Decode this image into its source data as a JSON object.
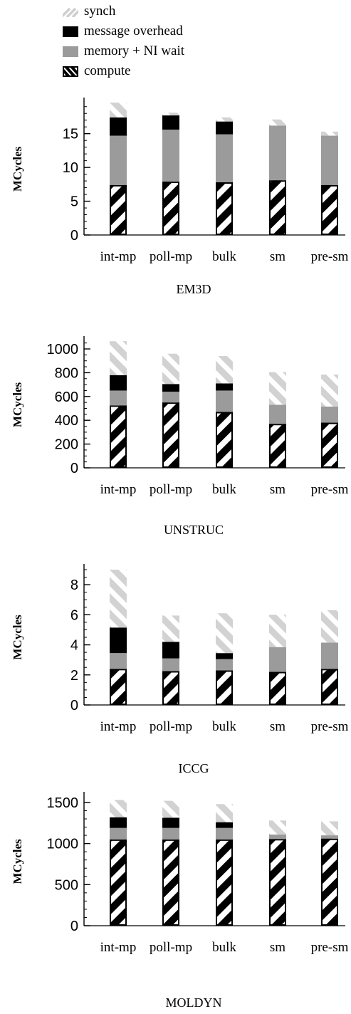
{
  "legend": {
    "items": [
      {
        "key": "synch",
        "label": "synch",
        "pattern": "light-hatch"
      },
      {
        "key": "message",
        "label": "message overhead",
        "pattern": "solid-black"
      },
      {
        "key": "memory",
        "label": "memory + NI wait",
        "pattern": "solid-gray"
      },
      {
        "key": "compute",
        "label": "compute",
        "pattern": "black-white-hatch"
      }
    ]
  },
  "colors": {
    "gray": "#9b9b9b",
    "black": "#000000",
    "light_hatch": "#d2d2d2"
  },
  "chart_data": [
    {
      "type": "bar",
      "stacked": true,
      "xlabel": "EM3D",
      "ylabel": "MCycles",
      "categories": [
        "int-mp",
        "poll-mp",
        "bulk",
        "sm",
        "pre-sm"
      ],
      "ylim": [
        0,
        19.5
      ],
      "yticks": [
        0,
        5,
        10,
        15
      ],
      "minor_step": 1,
      "series": [
        {
          "name": "compute",
          "values": [
            7.4,
            7.9,
            7.8,
            8.1,
            7.4
          ]
        },
        {
          "name": "memory + NI wait",
          "values": [
            7.3,
            7.7,
            7.1,
            8.1,
            7.3
          ]
        },
        {
          "name": "message overhead",
          "values": [
            2.7,
            2.1,
            1.9,
            0,
            0
          ]
        },
        {
          "name": "synch",
          "values": [
            2.2,
            0.4,
            0.6,
            0.9,
            0.6
          ]
        }
      ]
    },
    {
      "type": "bar",
      "stacked": true,
      "xlabel": "UNSTRUC",
      "ylabel": "MCycles",
      "categories": [
        "int-mp",
        "poll-mp",
        "bulk",
        "sm",
        "pre-sm"
      ],
      "ylim": [
        0,
        1060
      ],
      "yticks": [
        0,
        200,
        400,
        600,
        800,
        1000
      ],
      "minor_step": 50,
      "series": [
        {
          "name": "compute",
          "values": [
            525,
            550,
            470,
            370,
            380
          ]
        },
        {
          "name": "memory + NI wait",
          "values": [
            125,
            90,
            180,
            160,
            135
          ]
        },
        {
          "name": "message overhead",
          "values": [
            130,
            65,
            60,
            0,
            0
          ]
        },
        {
          "name": "synch",
          "values": [
            285,
            255,
            230,
            275,
            270
          ]
        }
      ]
    },
    {
      "type": "bar",
      "stacked": true,
      "xlabel": "ICCG",
      "ylabel": "MCycles",
      "categories": [
        "int-mp",
        "poll-mp",
        "bulk",
        "sm",
        "pre-sm"
      ],
      "ylim": [
        0,
        9
      ],
      "yticks": [
        0,
        2,
        4,
        6,
        8
      ],
      "minor_step": 0.5,
      "series": [
        {
          "name": "compute",
          "values": [
            2.4,
            2.25,
            2.3,
            2.2,
            2.4
          ]
        },
        {
          "name": "memory + NI wait",
          "values": [
            1.05,
            0.85,
            0.75,
            1.65,
            1.75
          ]
        },
        {
          "name": "message overhead",
          "values": [
            1.7,
            1.1,
            0.4,
            0,
            0
          ]
        },
        {
          "name": "synch",
          "values": [
            3.85,
            1.75,
            2.65,
            2.15,
            2.15
          ]
        }
      ]
    },
    {
      "type": "bar",
      "stacked": true,
      "xlabel": "MOLDYN",
      "ylabel": "MCycles",
      "categories": [
        "int-mp",
        "poll-mp",
        "bulk",
        "sm",
        "pre-sm"
      ],
      "ylim": [
        0,
        1560
      ],
      "yticks": [
        0,
        500,
        1000,
        1500
      ],
      "minor_step": 100,
      "series": [
        {
          "name": "compute",
          "values": [
            1050,
            1050,
            1050,
            1055,
            1060
          ]
        },
        {
          "name": "memory + NI wait",
          "values": [
            140,
            140,
            140,
            55,
            40
          ]
        },
        {
          "name": "message overhead",
          "values": [
            130,
            125,
            70,
            0,
            0
          ]
        },
        {
          "name": "synch",
          "values": [
            210,
            205,
            220,
            170,
            170
          ]
        }
      ]
    }
  ]
}
